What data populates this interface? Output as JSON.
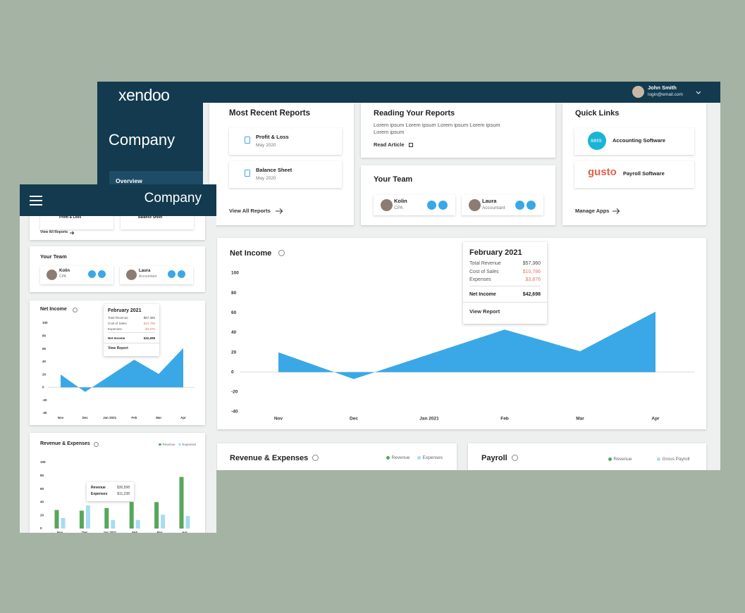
{
  "header": {
    "logo": "xendoo",
    "user_name": "John Smith",
    "user_email": "login@email.com"
  },
  "sidebar": {
    "title": "Company",
    "nav": [
      "Overview"
    ]
  },
  "reports": {
    "title": "Most Recent Reports",
    "items": [
      {
        "name": "Profit & Loss",
        "date": "May 2020"
      },
      {
        "name": "Balance Sheet",
        "date": "May 2020"
      }
    ],
    "link": "View All Reports"
  },
  "reading": {
    "title": "Reading Your Reports",
    "text": "Lorem ipsum Lorem ipsum Lorem ipsum Lorem ipsum Lorem ipsum",
    "link": "Read Article"
  },
  "team": {
    "title": "Your Team",
    "members": [
      {
        "name": "Kolin",
        "role": "CPA"
      },
      {
        "name": "Laura",
        "role": "Accountant"
      }
    ]
  },
  "quick_links": {
    "title": "Quick Links",
    "items": [
      {
        "logo": "xero",
        "name": "Accounting Software"
      },
      {
        "logo": "gusto",
        "name": "Payroll Software"
      }
    ],
    "link": "Manage Apps"
  },
  "net_income": {
    "type": "area",
    "title": "Net Income",
    "categories": [
      "Nov",
      "Dec",
      "Jan 2021",
      "Feb",
      "Mar",
      "Apr"
    ],
    "values": [
      20,
      -7,
      18,
      43,
      21,
      61
    ],
    "color": "#3aa8e6",
    "ylim": [
      -40,
      100
    ],
    "yticks": [
      -40,
      -20,
      0,
      20,
      40,
      60,
      80,
      100
    ],
    "tooltip": {
      "title": "February 2021",
      "rows": [
        {
          "label": "Total Revenue",
          "value": "$57,360",
          "color": "#444444"
        },
        {
          "label": "Cost of Sales",
          "value": "$10,786",
          "color": "#e07a6a"
        },
        {
          "label": "Expenses",
          "value": "$3,876",
          "color": "#e07a6a"
        }
      ],
      "total": {
        "label": "Net Income",
        "value": "$42,698"
      },
      "link": "View Report"
    }
  },
  "revenue_expenses": {
    "type": "bar",
    "title": "Revenue & Expenses",
    "categories": [
      "Nov",
      "Dec",
      "Jan 2021",
      "Feb",
      "Mar",
      "Apr"
    ],
    "series": [
      {
        "name": "Revenue",
        "color": "#57a65b",
        "values": [
          28,
          27,
          31,
          40,
          40,
          78
        ]
      },
      {
        "name": "Expenses",
        "color": "#a7dcf1",
        "values": [
          16,
          35,
          13,
          13,
          21,
          19
        ]
      }
    ],
    "ylim": [
      0,
      100
    ],
    "yticks": [
      0,
      20,
      40,
      60,
      80,
      100
    ],
    "tooltip": {
      "rows": [
        {
          "label": "Revenue",
          "value": "$30,598"
        },
        {
          "label": "Expenses",
          "value": "$11,238"
        }
      ]
    }
  },
  "payroll": {
    "title": "Payroll",
    "legend": [
      {
        "name": "Revenue",
        "color": "#57a65b"
      },
      {
        "name": "Gross Payroll",
        "color": "#a7dcf1"
      }
    ]
  }
}
